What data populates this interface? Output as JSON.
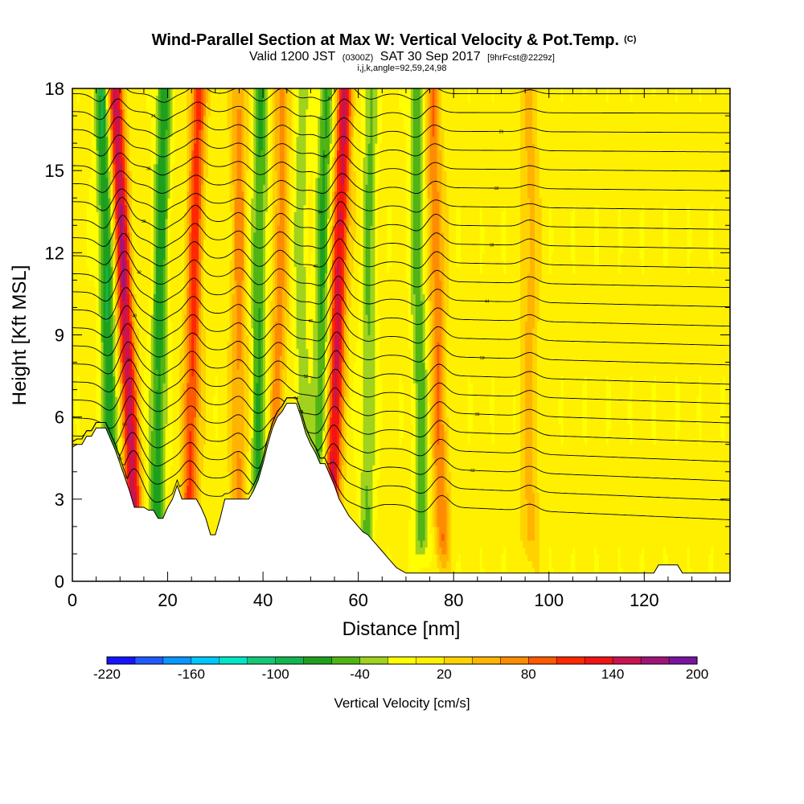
{
  "header": {
    "title": "Wind-Parallel Section at Max W: Vertical Velocity & Pot.Temp.",
    "title_mark": "(C)",
    "valid_a": "Valid 1200 JST",
    "valid_b": "(0300Z)",
    "valid_c": "SAT 30 Sep 2017",
    "valid_d": "[9hrFcst@2229z]",
    "indices": "i,j,k,angle=92,59,24,98"
  },
  "chart_data": {
    "type": "heatmap",
    "xlabel": "Distance [nm]",
    "ylabel": "Height [Kft MSL]",
    "xlim": [
      0,
      138
    ],
    "ylim": [
      0,
      18
    ],
    "x_ticks": [
      "0",
      "20",
      "40",
      "60",
      "80",
      "100",
      "120"
    ],
    "y_ticks": [
      "0",
      "3",
      "6",
      "9",
      "12",
      "15",
      "18"
    ],
    "colorbar": {
      "title": "Vertical Velocity [cm/s]",
      "min": -220,
      "max": 200,
      "labels": [
        "-220",
        "-160",
        "-100",
        "-40",
        "20",
        "80",
        "140",
        "200"
      ],
      "colors": [
        "#1414ff",
        "#1e5aff",
        "#0a96ff",
        "#00c8ff",
        "#00e6c8",
        "#14c878",
        "#14b450",
        "#1ea01e",
        "#50b414",
        "#a0d21e",
        "#ffff00",
        "#fff000",
        "#ffd200",
        "#ffb400",
        "#ff8c00",
        "#ff5a00",
        "#ff2800",
        "#f01414",
        "#c81450",
        "#a01478",
        "#7814a0"
      ]
    },
    "terrain": [
      [
        0,
        4.9
      ],
      [
        1,
        5.0
      ],
      [
        2,
        5.0
      ],
      [
        3,
        5.3
      ],
      [
        4,
        5.3
      ],
      [
        5,
        5.6
      ],
      [
        7,
        5.6
      ],
      [
        8,
        5.2
      ],
      [
        9,
        4.8
      ],
      [
        10,
        4.3
      ],
      [
        11,
        3.8
      ],
      [
        12,
        3.3
      ],
      [
        13,
        2.7
      ],
      [
        14,
        2.7
      ],
      [
        15,
        2.7
      ],
      [
        16,
        2.6
      ],
      [
        17,
        2.6
      ],
      [
        18,
        2.3
      ],
      [
        19,
        2.3
      ],
      [
        20,
        2.7
      ],
      [
        21,
        3.0
      ],
      [
        22,
        3.5
      ],
      [
        23,
        3.0
      ],
      [
        24,
        3.0
      ],
      [
        25,
        3.0
      ],
      [
        26,
        3.0
      ],
      [
        27,
        2.7
      ],
      [
        28,
        2.3
      ],
      [
        29,
        1.7
      ],
      [
        30,
        1.7
      ],
      [
        31,
        2.3
      ],
      [
        32,
        3.0
      ],
      [
        33,
        3.0
      ],
      [
        34,
        3.0
      ],
      [
        35,
        3.0
      ],
      [
        36,
        3.0
      ],
      [
        37,
        3.0
      ],
      [
        38,
        3.3
      ],
      [
        39,
        3.7
      ],
      [
        40,
        4.3
      ],
      [
        41,
        5.0
      ],
      [
        42,
        5.6
      ],
      [
        43,
        6.0
      ],
      [
        44,
        6.2
      ],
      [
        45,
        6.5
      ],
      [
        46,
        6.5
      ],
      [
        47,
        6.5
      ],
      [
        48,
        6.0
      ],
      [
        49,
        5.4
      ],
      [
        50,
        5.0
      ],
      [
        51,
        4.7
      ],
      [
        52,
        4.3
      ],
      [
        53,
        4.3
      ],
      [
        54,
        3.9
      ],
      [
        55,
        3.5
      ],
      [
        56,
        3.0
      ],
      [
        57,
        2.7
      ],
      [
        58,
        2.4
      ],
      [
        59,
        2.2
      ],
      [
        60,
        2.0
      ],
      [
        61,
        1.8
      ],
      [
        62,
        1.7
      ],
      [
        63,
        1.5
      ],
      [
        64,
        1.3
      ],
      [
        65,
        1.1
      ],
      [
        66,
        0.9
      ],
      [
        67,
        0.7
      ],
      [
        68,
        0.5
      ],
      [
        69,
        0.4
      ],
      [
        70,
        0.3
      ],
      [
        122,
        0.3
      ],
      [
        123,
        0.6
      ],
      [
        127,
        0.6
      ],
      [
        128,
        0.3
      ],
      [
        138,
        0.3
      ]
    ],
    "updrafts": [
      {
        "x": 12,
        "tilt": -0.25,
        "w": 150
      },
      {
        "x": 25,
        "tilt": 0.12,
        "w": 100
      },
      {
        "x": 55,
        "tilt": 0.18,
        "w": 140
      },
      {
        "x": 43,
        "tilt": 0.1,
        "w": 60
      },
      {
        "x": 35,
        "tilt": 0.0,
        "w": 60
      },
      {
        "x": 77,
        "tilt": -0.12,
        "w": 70
      },
      {
        "x": 96,
        "tilt": 0.0,
        "w": 40
      }
    ],
    "downdrafts": [
      {
        "x": 8,
        "tilt": -0.15,
        "w": -90
      },
      {
        "x": 18,
        "tilt": 0.1,
        "w": -80
      },
      {
        "x": 39,
        "tilt": 0.05,
        "w": -70
      },
      {
        "x": 52,
        "tilt": 0.1,
        "w": -70
      },
      {
        "x": 48,
        "tilt": 0.0,
        "w": -40
      },
      {
        "x": 62,
        "tilt": 0.05,
        "w": -50
      },
      {
        "x": 73,
        "tilt": -0.08,
        "w": -60
      }
    ],
    "isentrope_labels": [
      "66",
      "64",
      "62",
      "60",
      "58",
      "56",
      "54",
      "52",
      "50",
      "48",
      "46",
      "44",
      "42",
      "40",
      "38",
      "36",
      "34",
      "32",
      "30",
      "28",
      "26",
      "24",
      "22"
    ]
  }
}
